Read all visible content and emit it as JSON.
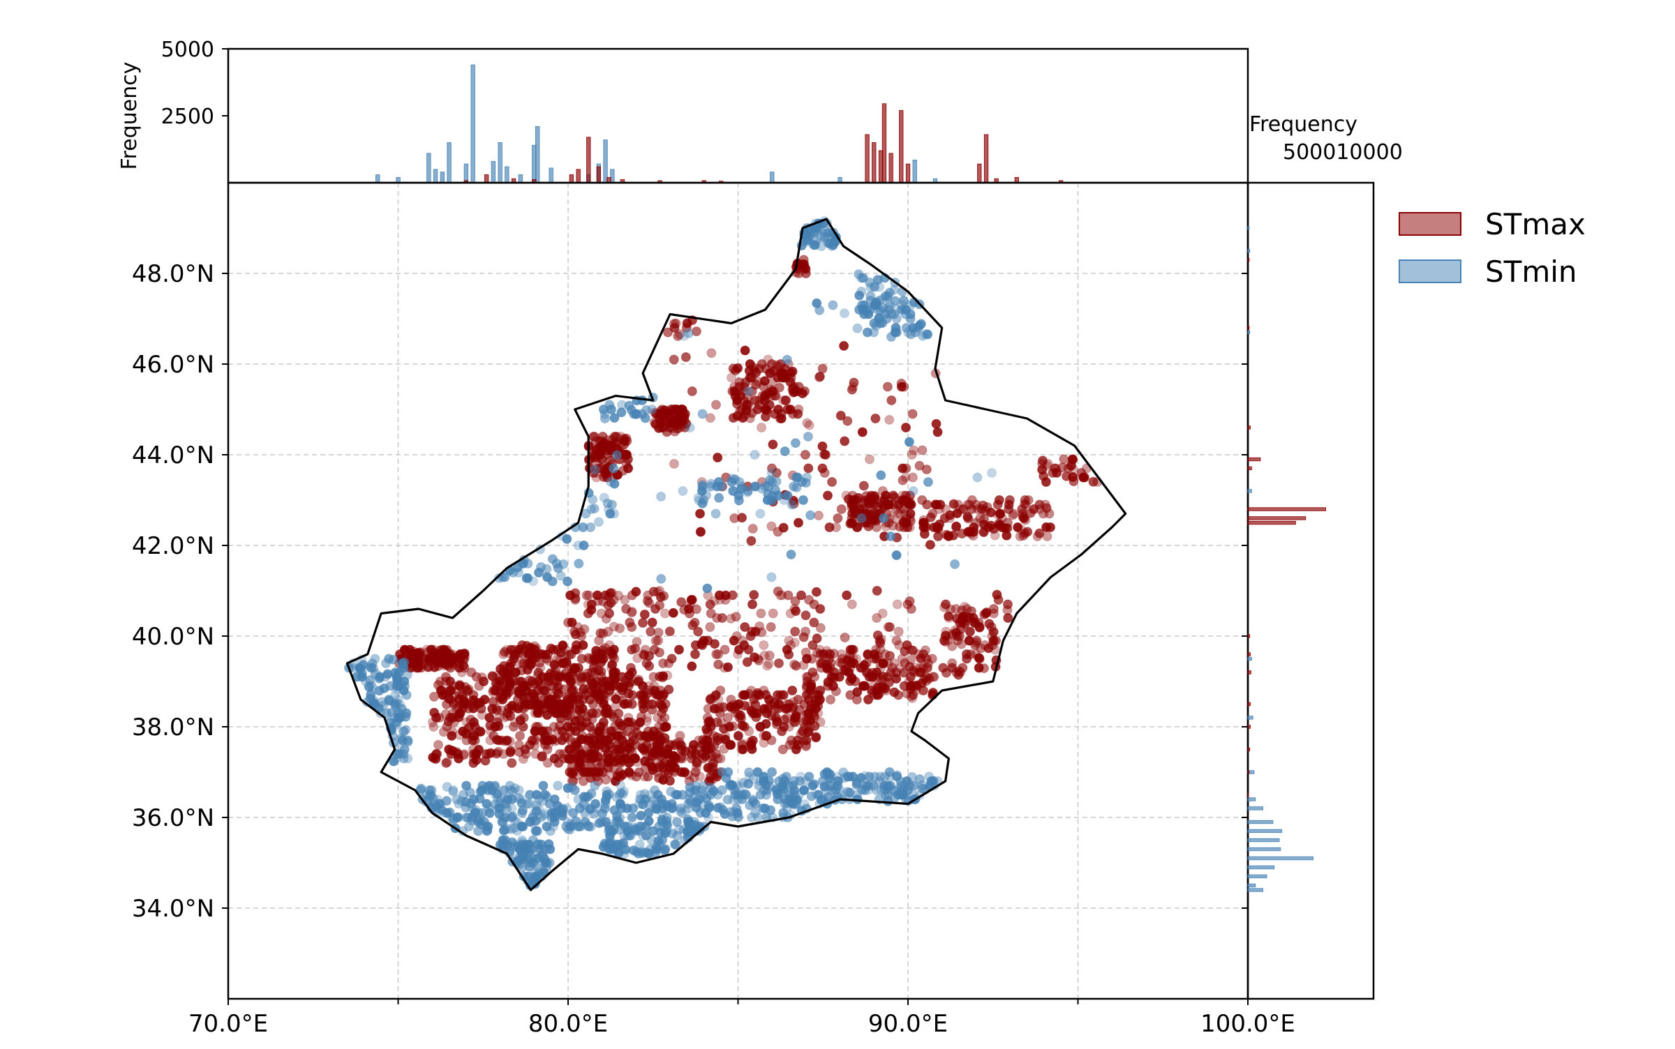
{
  "chart_data": {
    "type": "scatter",
    "map": {
      "xlim": [
        70,
        100
      ],
      "ylim": [
        32,
        50
      ],
      "x_ticks": [
        70,
        80,
        90,
        100
      ],
      "x_tick_labels": [
        "70.0°E",
        "80.0°E",
        "90.0°E",
        "100.0°E"
      ],
      "y_ticks": [
        34,
        36,
        38,
        40,
        42,
        44,
        46,
        48
      ],
      "y_tick_labels": [
        "34.0°N",
        "36.0°N",
        "38.0°N",
        "40.0°N",
        "42.0°N",
        "44.0°N",
        "46.0°N",
        "48.0°N"
      ],
      "grid_x": [
        75,
        80,
        85,
        90,
        95
      ],
      "grid": true,
      "boundary": [
        [
          73.5,
          39.4
        ],
        [
          74.1,
          39.6
        ],
        [
          74.5,
          40.5
        ],
        [
          75.6,
          40.6
        ],
        [
          76.6,
          40.4
        ],
        [
          77.5,
          41.0
        ],
        [
          78.2,
          41.5
        ],
        [
          79.5,
          42.1
        ],
        [
          80.3,
          42.5
        ],
        [
          80.6,
          43.3
        ],
        [
          80.6,
          44.4
        ],
        [
          80.2,
          45.0
        ],
        [
          81.4,
          45.3
        ],
        [
          82.5,
          45.2
        ],
        [
          82.2,
          45.8
        ],
        [
          83.0,
          47.1
        ],
        [
          84.8,
          46.9
        ],
        [
          85.8,
          47.2
        ],
        [
          86.7,
          48.1
        ],
        [
          86.9,
          49.0
        ],
        [
          87.6,
          49.2
        ],
        [
          88.1,
          48.6
        ],
        [
          88.9,
          48.2
        ],
        [
          90.0,
          47.6
        ],
        [
          91.0,
          46.8
        ],
        [
          90.8,
          45.9
        ],
        [
          91.1,
          45.2
        ],
        [
          92.3,
          45.0
        ],
        [
          93.5,
          44.8
        ],
        [
          94.9,
          44.2
        ],
        [
          96.0,
          43.1
        ],
        [
          96.4,
          42.7
        ],
        [
          96.0,
          42.4
        ],
        [
          95.1,
          41.8
        ],
        [
          94.2,
          41.3
        ],
        [
          93.2,
          40.5
        ],
        [
          92.8,
          39.9
        ],
        [
          92.5,
          39.0
        ],
        [
          91.0,
          38.8
        ],
        [
          90.3,
          38.3
        ],
        [
          90.1,
          37.9
        ],
        [
          90.5,
          37.7
        ],
        [
          91.2,
          37.3
        ],
        [
          91.1,
          36.8
        ],
        [
          90.0,
          36.3
        ],
        [
          88.0,
          36.4
        ],
        [
          86.5,
          36.0
        ],
        [
          85.0,
          35.8
        ],
        [
          84.2,
          35.9
        ],
        [
          83.1,
          35.2
        ],
        [
          82.0,
          35.0
        ],
        [
          81.0,
          35.2
        ],
        [
          80.3,
          35.3
        ],
        [
          79.5,
          34.8
        ],
        [
          78.9,
          34.4
        ],
        [
          78.2,
          35.2
        ],
        [
          77.0,
          35.6
        ],
        [
          76.0,
          36.1
        ],
        [
          75.5,
          36.6
        ],
        [
          74.5,
          37.0
        ],
        [
          74.9,
          37.5
        ],
        [
          74.6,
          38.2
        ],
        [
          73.9,
          38.6
        ],
        [
          73.5,
          39.4
        ]
      ],
      "stmax_clusters": [
        {
          "lon": [
            75.0,
            77.0
          ],
          "lat": [
            39.3,
            39.7
          ],
          "n": 120
        },
        {
          "lon": [
            76.0,
            83.0
          ],
          "lat": [
            37.2,
            39.2
          ],
          "n": 520
        },
        {
          "lon": [
            78.0,
            81.5
          ],
          "lat": [
            38.2,
            39.8
          ],
          "n": 250
        },
        {
          "lon": [
            80.0,
            84.5
          ],
          "lat": [
            36.8,
            37.8
          ],
          "n": 220
        },
        {
          "lon": [
            84.0,
            87.5
          ],
          "lat": [
            37.5,
            38.8
          ],
          "n": 180
        },
        {
          "lon": [
            87.0,
            90.8
          ],
          "lat": [
            38.6,
            39.7
          ],
          "n": 160
        },
        {
          "lon": [
            80.0,
            87.5
          ],
          "lat": [
            39.3,
            41.0
          ],
          "n": 190
        },
        {
          "lon": [
            88.0,
            93.0
          ],
          "lat": [
            39.0,
            41.0
          ],
          "n": 70
        },
        {
          "lon": [
            91.0,
            93.0
          ],
          "lat": [
            39.2,
            40.7
          ],
          "n": 60
        },
        {
          "lon": [
            80.3,
            81.8
          ],
          "lat": [
            43.5,
            44.4
          ],
          "n": 90
        },
        {
          "lon": [
            82.5,
            83.5
          ],
          "lat": [
            44.5,
            45.0
          ],
          "n": 60
        },
        {
          "lon": [
            84.8,
            86.8
          ],
          "lat": [
            44.8,
            46.0
          ],
          "n": 110
        },
        {
          "lon": [
            88.3,
            90.1
          ],
          "lat": [
            42.4,
            43.1
          ],
          "n": 120
        },
        {
          "lon": [
            90.4,
            94.2
          ],
          "lat": [
            42.2,
            43.0
          ],
          "n": 110
        },
        {
          "lon": [
            93.9,
            95.8
          ],
          "lat": [
            43.4,
            44.0
          ],
          "n": 30
        },
        {
          "lon": [
            83.0,
            91.0
          ],
          "lat": [
            42.0,
            46.5
          ],
          "n": 110
        },
        {
          "lon": [
            85.5,
            87.0
          ],
          "lat": [
            48.0,
            48.3
          ],
          "n": 15
        },
        {
          "lon": [
            82.8,
            83.8
          ],
          "lat": [
            46.6,
            47.0
          ],
          "n": 10
        }
      ],
      "stmin_clusters": [
        {
          "lon": [
            75.5,
            84.5
          ],
          "lat": [
            35.7,
            36.7
          ],
          "n": 340
        },
        {
          "lon": [
            84.5,
            91.2
          ],
          "lat": [
            36.0,
            37.0
          ],
          "n": 220
        },
        {
          "lon": [
            78.0,
            79.5
          ],
          "lat": [
            34.5,
            35.5
          ],
          "n": 90
        },
        {
          "lon": [
            73.5,
            75.3
          ],
          "lat": [
            37.2,
            39.5
          ],
          "n": 110
        },
        {
          "lon": [
            81.0,
            84.0
          ],
          "lat": [
            35.2,
            35.8
          ],
          "n": 80
        },
        {
          "lon": [
            86.5,
            88.1
          ],
          "lat": [
            48.6,
            49.2
          ],
          "n": 50
        },
        {
          "lon": [
            88.5,
            91.0
          ],
          "lat": [
            46.6,
            48.0
          ],
          "n": 80
        },
        {
          "lon": [
            83.8,
            87.0
          ],
          "lat": [
            42.9,
            43.5
          ],
          "n": 50
        },
        {
          "lon": [
            77.5,
            80.5
          ],
          "lat": [
            41.2,
            42.3
          ],
          "n": 30
        },
        {
          "lon": [
            80.0,
            81.5
          ],
          "lat": [
            42.3,
            44.0
          ],
          "n": 20
        },
        {
          "lon": [
            81.0,
            82.6
          ],
          "lat": [
            44.8,
            45.3
          ],
          "n": 20
        },
        {
          "lon": [
            82.0,
            93.0
          ],
          "lat": [
            41.0,
            47.5
          ],
          "n": 40
        }
      ]
    },
    "top_hist": {
      "ylabel": "Frequency",
      "yticks": [
        2500,
        5000
      ],
      "ylim": [
        0,
        5000
      ],
      "stmax_bars": [
        [
          77.0,
          80
        ],
        [
          77.6,
          300
        ],
        [
          78.4,
          150
        ],
        [
          79.0,
          120
        ],
        [
          80.1,
          300
        ],
        [
          80.3,
          500
        ],
        [
          80.6,
          1700
        ],
        [
          80.9,
          600
        ],
        [
          81.2,
          200
        ],
        [
          81.6,
          120
        ],
        [
          82.7,
          80
        ],
        [
          84.0,
          80
        ],
        [
          84.5,
          60
        ],
        [
          88.8,
          1800
        ],
        [
          89.0,
          1500
        ],
        [
          89.2,
          1200
        ],
        [
          89.3,
          2950
        ],
        [
          89.5,
          1100
        ],
        [
          89.8,
          2700
        ],
        [
          90.0,
          700
        ],
        [
          92.1,
          700
        ],
        [
          92.3,
          1800
        ],
        [
          92.6,
          150
        ],
        [
          93.2,
          200
        ],
        [
          94.5,
          80
        ]
      ],
      "stmin_bars": [
        [
          74.4,
          300
        ],
        [
          75.0,
          200
        ],
        [
          75.9,
          1100
        ],
        [
          76.1,
          500
        ],
        [
          76.3,
          400
        ],
        [
          76.5,
          1500
        ],
        [
          77.0,
          700
        ],
        [
          77.2,
          4400
        ],
        [
          77.8,
          800
        ],
        [
          78.0,
          1500
        ],
        [
          78.2,
          600
        ],
        [
          78.6,
          300
        ],
        [
          79.0,
          1400
        ],
        [
          79.1,
          2100
        ],
        [
          79.5,
          550
        ],
        [
          80.6,
          300
        ],
        [
          80.9,
          700
        ],
        [
          81.1,
          1600
        ],
        [
          81.3,
          500
        ],
        [
          86.0,
          400
        ],
        [
          88.0,
          200
        ],
        [
          90.2,
          850
        ],
        [
          90.8,
          150
        ]
      ]
    },
    "right_hist": {
      "xlabel": "Frequency",
      "xtick_label": "500010000",
      "xlim": [
        0,
        10000
      ],
      "stmax_bars": [
        [
          44.6,
          200
        ],
        [
          43.9,
          1000
        ],
        [
          43.7,
          300
        ],
        [
          42.8,
          6200
        ],
        [
          42.6,
          4600
        ],
        [
          42.5,
          3800
        ],
        [
          40.0,
          150
        ],
        [
          39.6,
          200
        ],
        [
          39.2,
          250
        ],
        [
          38.5,
          200
        ],
        [
          38.0,
          200
        ],
        [
          37.5,
          150
        ],
        [
          37.0,
          100
        ],
        [
          36.5,
          50
        ],
        [
          46.8,
          100
        ],
        [
          48.3,
          100
        ]
      ],
      "stmin_bars": [
        [
          36.4,
          600
        ],
        [
          36.2,
          1200
        ],
        [
          35.9,
          2000
        ],
        [
          35.7,
          2700
        ],
        [
          35.5,
          2500
        ],
        [
          35.3,
          2600
        ],
        [
          35.1,
          5200
        ],
        [
          34.9,
          2100
        ],
        [
          34.5,
          600
        ],
        [
          34.7,
          1500
        ],
        [
          34.4,
          1200
        ],
        [
          37.0,
          500
        ],
        [
          38.2,
          400
        ],
        [
          39.5,
          300
        ],
        [
          43.2,
          300
        ],
        [
          46.7,
          150
        ],
        [
          48.5,
          150
        ],
        [
          49.0,
          100
        ]
      ]
    },
    "legend": {
      "placement": "top-right",
      "items": [
        {
          "label": "STmax",
          "color": "#8b0000"
        },
        {
          "label": "STmin",
          "color": "#4682b4"
        }
      ]
    },
    "colors": {
      "stmax": "#8b0000",
      "stmin": "#4682b4",
      "boundary": "#000000",
      "grid": "#c8c8c8"
    }
  }
}
